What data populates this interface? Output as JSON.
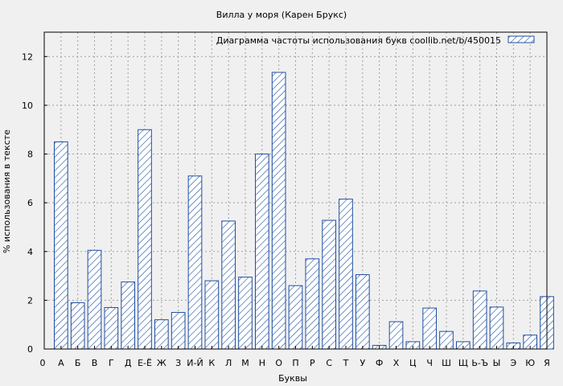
{
  "chart_data": {
    "type": "bar",
    "title": "Вилла у моря (Карен Брукс)",
    "xlabel": "Буквы",
    "ylabel": "% использования в тексте",
    "ylim": [
      0,
      13
    ],
    "yticks": [
      0,
      2,
      4,
      6,
      8,
      10,
      12
    ],
    "grid": true,
    "legend_position": "top-right",
    "x_axis_start_label": "0",
    "categories": [
      "А",
      "Б",
      "В",
      "Г",
      "Д",
      "Е-Ё",
      "Ж",
      "З",
      "И-Й",
      "К",
      "Л",
      "М",
      "Н",
      "О",
      "П",
      "Р",
      "С",
      "Т",
      "У",
      "Ф",
      "Х",
      "Ц",
      "Ч",
      "Ш",
      "Щ",
      "Ь-Ъ",
      "Ы",
      "Э",
      "Ю",
      "Я"
    ],
    "series": [
      {
        "name": "Диаграмма частоты использования букв  coollib.net/b/450015",
        "values": [
          8.5,
          1.9,
          4.05,
          1.7,
          2.75,
          9.0,
          1.2,
          1.5,
          7.1,
          2.8,
          5.25,
          2.95,
          8.0,
          11.35,
          2.6,
          3.7,
          5.28,
          6.15,
          3.05,
          0.15,
          1.12,
          0.3,
          1.68,
          0.72,
          0.3,
          2.38,
          1.72,
          0.25,
          0.57,
          2.15
        ]
      }
    ],
    "colors": {
      "bar_stroke": "#1f4fa3",
      "hatch": "#1f4fa3",
      "background": "#f0f0f0",
      "grid": "#a0a0a0"
    }
  }
}
